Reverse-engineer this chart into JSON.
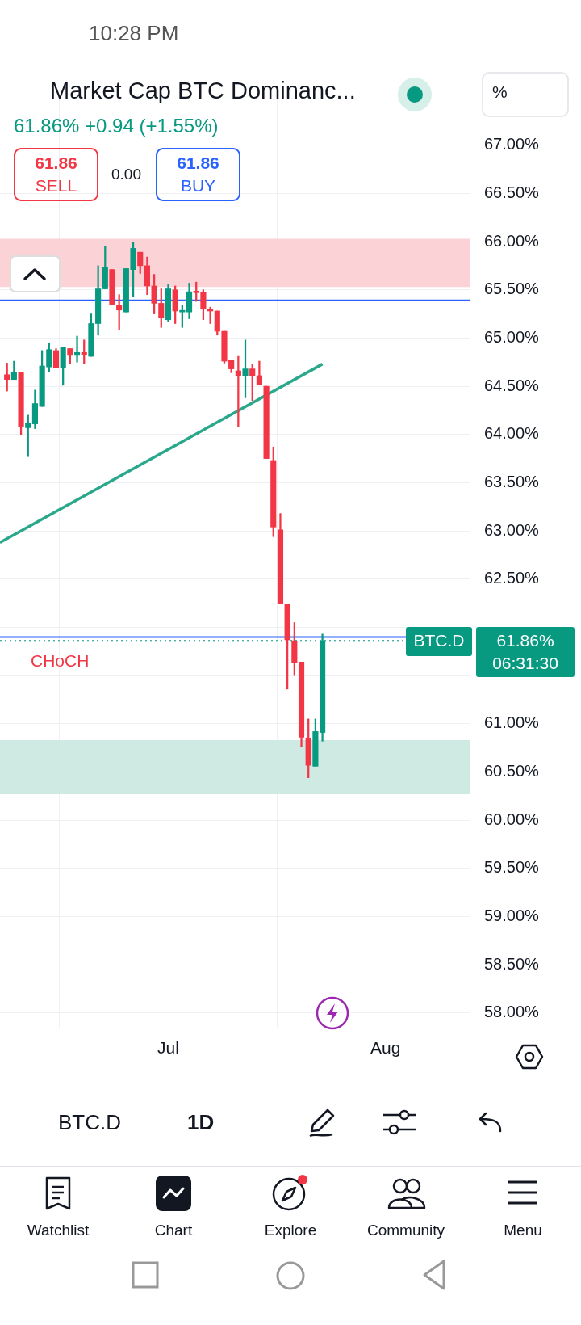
{
  "chart_data": {
    "type": "candlestick",
    "title": "Market Cap BTC Dominanc...",
    "subtitle": "61.86%  +0.94 (+1.55%)",
    "xlim": [
      "--06-07",
      "--08-13"
    ],
    "xticks": [
      {
        "value": "--07-01",
        "label": "Jul"
      },
      {
        "value": "--08-01",
        "label": "Aug"
      }
    ],
    "ylim": [
      57.85,
      67.5
    ],
    "yticks": [
      {
        "value": 58,
        "label": "58.00%"
      },
      {
        "value": 58.5,
        "label": "58.50%"
      },
      {
        "value": 59,
        "label": "59.00%"
      },
      {
        "value": 59.5,
        "label": "59.50%"
      },
      {
        "value": 60,
        "label": "60.00%"
      },
      {
        "value": 60.5,
        "label": "60.50%"
      },
      {
        "value": 61,
        "label": "61.00%"
      },
      {
        "value": 61.5,
        "label": null
      },
      {
        "value": 62,
        "label": null
      },
      {
        "value": 62.5,
        "label": "62.50%"
      },
      {
        "value": 63,
        "label": "63.00%"
      },
      {
        "value": 63.5,
        "label": "63.50%"
      },
      {
        "value": 64,
        "label": "64.00%"
      },
      {
        "value": 64.5,
        "label": "64.50%"
      },
      {
        "value": 65,
        "label": "65.00%"
      },
      {
        "value": 65.5,
        "label": "65.50%"
      },
      {
        "value": 66,
        "label": "66.00%"
      },
      {
        "value": 66.5,
        "label": "66.50%"
      },
      {
        "value": 67,
        "label": "67.00%"
      }
    ],
    "grid": true,
    "series": [
      {
        "x": [
          "--06-08",
          "--06-09",
          "--06-10",
          "--06-11",
          "--06-12",
          "--06-13",
          "--06-14",
          "--06-15",
          "--06-16",
          "--06-17",
          "--06-18",
          "--06-19",
          "--06-20",
          "--06-21",
          "--06-22",
          "--06-23",
          "--06-24",
          "--06-25",
          "--06-26",
          "--06-27",
          "--06-28",
          "--06-29",
          "--06-30",
          "--07-01",
          "--07-02",
          "--07-03",
          "--07-04",
          "--07-05",
          "--07-06",
          "--07-07",
          "--07-08",
          "--07-09",
          "--07-10",
          "--07-11",
          "--07-12",
          "--07-13",
          "--07-14",
          "--07-15",
          "--07-16",
          "--07-17",
          "--07-18",
          "--07-19",
          "--07-20",
          "--07-21",
          "--07-22",
          "--07-23"
        ],
        "ohlc": [
          [
            64.62,
            64.74,
            64.45,
            64.57
          ],
          [
            64.57,
            64.76,
            64.57,
            64.64
          ],
          [
            64.64,
            64.64,
            64.0,
            64.08
          ],
          [
            64.07,
            64.2,
            63.77,
            64.12
          ],
          [
            64.11,
            64.46,
            64.06,
            64.32
          ],
          [
            64.29,
            64.87,
            64.29,
            64.71
          ],
          [
            64.7,
            64.95,
            64.65,
            64.88
          ],
          [
            64.87,
            64.89,
            64.69,
            64.69
          ],
          [
            64.69,
            64.9,
            64.51,
            64.9
          ],
          [
            64.89,
            64.89,
            64.73,
            64.82
          ],
          [
            64.82,
            65.02,
            64.75,
            64.85
          ],
          [
            64.85,
            64.98,
            64.73,
            64.83
          ],
          [
            64.81,
            65.25,
            64.81,
            65.15
          ],
          [
            65.15,
            65.75,
            65.03,
            65.51
          ],
          [
            65.51,
            65.95,
            65.51,
            65.73
          ],
          [
            65.71,
            65.71,
            65.35,
            65.35
          ],
          [
            65.34,
            65.45,
            65.09,
            65.29
          ],
          [
            65.27,
            65.72,
            65.27,
            65.72
          ],
          [
            65.71,
            65.99,
            65.43,
            65.93
          ],
          [
            65.89,
            65.89,
            65.67,
            65.75
          ],
          [
            65.75,
            65.84,
            65.45,
            65.54
          ],
          [
            65.54,
            65.66,
            65.25,
            65.36
          ],
          [
            65.36,
            65.51,
            65.11,
            65.21
          ],
          [
            65.19,
            65.56,
            65.17,
            65.51
          ],
          [
            65.5,
            65.54,
            65.15,
            65.28
          ],
          [
            65.27,
            65.34,
            65.11,
            65.28
          ],
          [
            65.27,
            65.57,
            65.2,
            65.48
          ],
          [
            65.48,
            65.58,
            65.38,
            65.47
          ],
          [
            65.47,
            65.5,
            65.19,
            65.3
          ],
          [
            65.3,
            65.32,
            65.15,
            65.28
          ],
          [
            65.28,
            65.28,
            65.03,
            65.07
          ],
          [
            65.07,
            65.07,
            64.74,
            64.76
          ],
          [
            64.77,
            64.77,
            64.64,
            64.68
          ],
          [
            64.66,
            64.81,
            64.08,
            64.61
          ],
          [
            64.61,
            64.98,
            64.38,
            64.68
          ],
          [
            64.68,
            64.73,
            64.35,
            64.61
          ],
          [
            64.61,
            64.76,
            64.52,
            64.52
          ],
          [
            64.5,
            64.5,
            63.75,
            63.75
          ],
          [
            63.73,
            63.87,
            62.94,
            63.04
          ],
          [
            63.01,
            63.18,
            62.25,
            62.25
          ],
          [
            62.24,
            62.24,
            61.36,
            61.87
          ],
          [
            61.86,
            62.05,
            61.5,
            61.63
          ],
          [
            61.64,
            61.64,
            60.76,
            60.86
          ],
          [
            60.85,
            61.05,
            60.44,
            60.57
          ],
          [
            60.56,
            61.05,
            60.56,
            60.92
          ],
          [
            60.91,
            61.93,
            60.82,
            61.86
          ]
        ],
        "colors": [
          "#f23645",
          "#089981",
          "#f23645",
          "#089981",
          "#089981",
          "#089981",
          "#089981",
          "#f23645",
          "#089981",
          "#f23645",
          "#089981",
          "#f23645",
          "#089981",
          "#089981",
          "#089981",
          "#f23645",
          "#f23645",
          "#089981",
          "#089981",
          "#f23645",
          "#f23645",
          "#f23645",
          "#f23645",
          "#089981",
          "#f23645",
          "#089981",
          "#089981",
          "#f23645",
          "#f23645",
          "#f23645",
          "#f23645",
          "#f23645",
          "#f23645",
          "#f23645",
          "#089981",
          "#f23645",
          "#f23645",
          "#f23645",
          "#f23645",
          "#f23645",
          "#f23645",
          "#f23645",
          "#f23645",
          "#f23645",
          "#089981",
          "#089981"
        ]
      },
      {
        "type": "line",
        "x": [
          "--06-07",
          "--07-23"
        ],
        "values": [
          62.88,
          64.73
        ],
        "color": "#2aa88c"
      }
    ],
    "ref_lines": [
      {
        "axis": "y",
        "value": 65.39,
        "color": "#2962ff"
      },
      {
        "axis": "y",
        "value": 61.9,
        "color": "#2962ff"
      },
      {
        "axis": "y",
        "value": 61.86,
        "color": "#089981",
        "line_style": "dotted"
      }
    ],
    "bands": [
      {
        "axis": "y",
        "from": 65.53,
        "to": 66.03,
        "color": "#fbd3d7"
      },
      {
        "axis": "y",
        "from": 60.27,
        "to": 60.83,
        "color": "#cfe9e3"
      }
    ],
    "annotations": [
      "10:28 PM",
      "61.86",
      "SELL",
      "0.00",
      "61.86",
      "BUY",
      "%",
      "BTC.D",
      "61.86%",
      "06:31:30",
      "BTC.D",
      "1D",
      "Watchlist",
      "Chart",
      "Explore",
      "Community",
      "Menu",
      "CHoCH"
    ]
  }
}
